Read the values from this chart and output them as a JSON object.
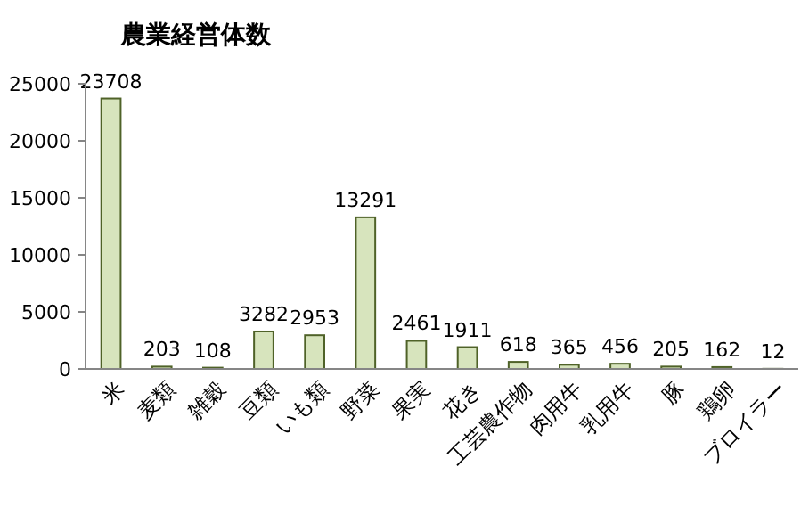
{
  "chart_data": {
    "type": "bar",
    "title": "農業経営体数",
    "categories": [
      "米",
      "麦類",
      "雑穀",
      "豆類",
      "いも類",
      "野菜",
      "果実",
      "花き",
      "工芸農作物",
      "肉用牛",
      "乳用牛",
      "豚",
      "鶏卵",
      "ブロイラー"
    ],
    "values": [
      23708,
      203,
      108,
      3282,
      2953,
      13291,
      2461,
      1911,
      618,
      365,
      456,
      205,
      162,
      12
    ],
    "color": "#d7e4bd",
    "ylim": [
      0,
      25000
    ],
    "yticks": [
      0,
      5000,
      10000,
      15000,
      20000,
      25000
    ],
    "grid": false,
    "data_labels": true
  }
}
